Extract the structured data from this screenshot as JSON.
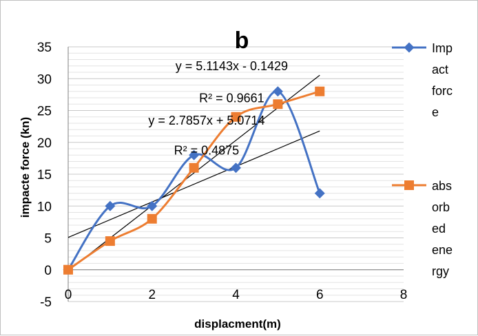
{
  "chart_data": {
    "type": "scatter",
    "title": "b",
    "xlabel": "displacment(m)",
    "ylabel": "impacte force (kn)",
    "xlim": [
      0,
      8
    ],
    "ylim": [
      -5,
      35
    ],
    "x_ticks": [
      "0",
      "2",
      "4",
      "6",
      "8"
    ],
    "y_ticks": [
      "-5",
      "0",
      "5",
      "10",
      "15",
      "20",
      "25",
      "30",
      "35"
    ],
    "grid": "horizontal",
    "legend_position": "right",
    "smooth_lines": true,
    "series": [
      {
        "name": "Impact force",
        "legend_lines": [
          "Imp",
          "act",
          "forc",
          "e"
        ],
        "color": "#4472C4",
        "marker": "diamond",
        "x": [
          0,
          1,
          2,
          3,
          4,
          5,
          6
        ],
        "y": [
          0,
          10,
          10,
          18,
          16,
          28,
          12
        ]
      },
      {
        "name": "absorbed energy",
        "legend_lines": [
          "abs",
          "orb",
          "ed",
          "ene",
          "rgy"
        ],
        "color": "#ED7D31",
        "marker": "square",
        "x": [
          0,
          1,
          2,
          3,
          4,
          5,
          6
        ],
        "y": [
          0,
          4.5,
          8,
          16,
          24,
          26,
          28
        ]
      }
    ],
    "trendlines": [
      {
        "slope": 5.1143,
        "intercept": -0.1429,
        "x_range": [
          0,
          6
        ],
        "color": "#000000"
      },
      {
        "slope": 2.7857,
        "intercept": 5.0714,
        "x_range": [
          0,
          6
        ],
        "color": "#000000"
      }
    ],
    "annotations": [
      {
        "text": "y = 5.1143x - 0.1429",
        "x": 3.9,
        "y": 31.3
      },
      {
        "text": "R² = 0.9661",
        "x": 3.9,
        "y": 26.3
      },
      {
        "text": "y = 2.7857x + 5.0714",
        "x": 3.3,
        "y": 22.8
      },
      {
        "text": "R² = 0.4875",
        "x": 3.3,
        "y": 18.1
      }
    ]
  }
}
